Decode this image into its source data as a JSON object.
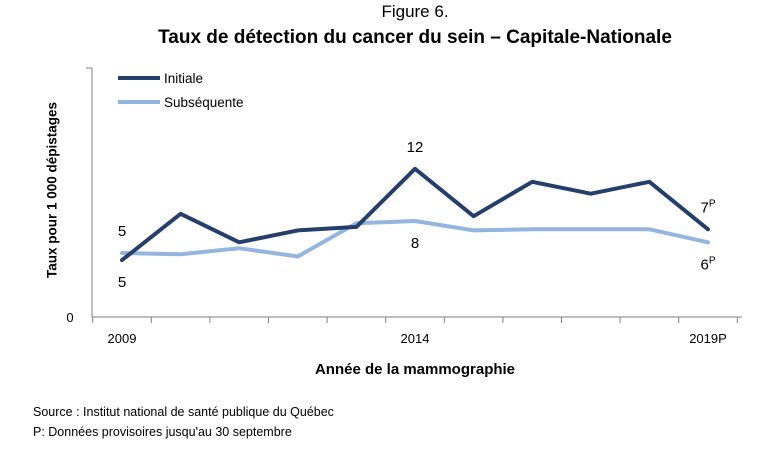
{
  "figure_number": "Figure 6.",
  "chart_data": {
    "type": "line",
    "title": "Taux de détection du cancer du sein – Capitale-Nationale",
    "xlabel": "Année de la mammographie",
    "ylabel": "Taux pour 1 000 dépistages",
    "x": [
      "2009",
      "2010",
      "2011",
      "2012",
      "2013",
      "2014",
      "2015",
      "2016",
      "2017",
      "2018",
      "2019P"
    ],
    "x_tick_labels": [
      {
        "index": 0,
        "label": "2009"
      },
      {
        "index": 5,
        "label": "2014"
      },
      {
        "index": 10,
        "label": "2019P"
      }
    ],
    "y_tick_labels": [
      {
        "value": 0,
        "label": "0"
      }
    ],
    "ylim": [
      0,
      21
    ],
    "grid": false,
    "legend_position": "top-left",
    "series": [
      {
        "name": "Initiale",
        "color": "#243f6b",
        "values": [
          4.8,
          8.7,
          6.3,
          7.3,
          7.6,
          12.5,
          8.5,
          11.4,
          10.4,
          11.4,
          7.4
        ]
      },
      {
        "name": "Subséquente",
        "color": "#94b5e0",
        "values": [
          5.4,
          5.3,
          5.8,
          5.1,
          7.9,
          8.1,
          7.3,
          7.4,
          7.4,
          7.4,
          6.3
        ]
      }
    ],
    "data_labels": [
      {
        "series": 0,
        "index": 0,
        "text": "5",
        "sup": "",
        "pos": "below"
      },
      {
        "series": 1,
        "index": 0,
        "text": "5",
        "sup": "",
        "pos": "above"
      },
      {
        "series": 0,
        "index": 5,
        "text": "12",
        "sup": "",
        "pos": "above"
      },
      {
        "series": 1,
        "index": 5,
        "text": "8",
        "sup": "",
        "pos": "below"
      },
      {
        "series": 0,
        "index": 10,
        "text": "7",
        "sup": "P",
        "pos": "above"
      },
      {
        "series": 1,
        "index": 10,
        "text": "6",
        "sup": "P",
        "pos": "below"
      }
    ]
  },
  "notes": {
    "source": "Source : Institut national de santé publique du Québec",
    "provisional": "P: Données provisoires jusqu'au 30 septembre"
  }
}
